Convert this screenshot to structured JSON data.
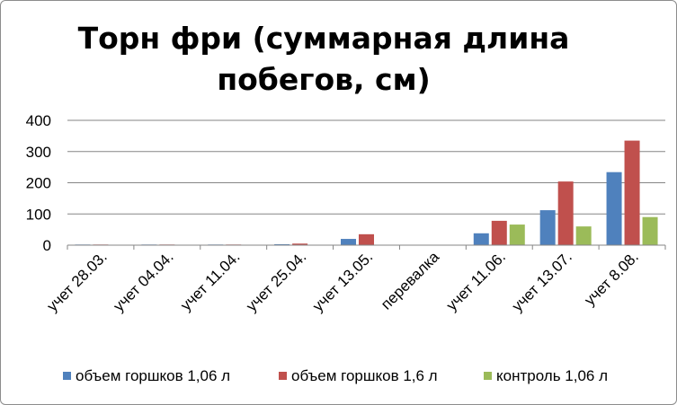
{
  "chart_data": {
    "type": "bar",
    "title": "Торн фри (суммарная длина побегов, см)",
    "title_lines": [
      "Торн фри (суммарная длина",
      "побегов, см)"
    ],
    "categories": [
      "учет 28.03.",
      "учет 04.04.",
      "учет 11.04.",
      "учет 25.04.",
      "учет 13.05.",
      "перевалка",
      "учет 11.06.",
      "учет 13.07.",
      "учет 8.08."
    ],
    "series": [
      {
        "name": "объем горшков 1,06 л",
        "color": "#4f81bd",
        "values": [
          2,
          2,
          2,
          3,
          20,
          null,
          38,
          112,
          234
        ]
      },
      {
        "name": "объем горшков 1,6 л",
        "color": "#c0504d",
        "values": [
          2,
          2,
          2,
          5,
          35,
          null,
          78,
          204,
          335
        ]
      },
      {
        "name": "контроль 1,06 л",
        "color": "#9bbb59",
        "values": [
          null,
          null,
          null,
          null,
          null,
          null,
          66,
          60,
          90
        ]
      }
    ],
    "yticks": [
      0,
      100,
      200,
      300,
      400
    ],
    "ylim": [
      0,
      400
    ],
    "xlabel": "",
    "ylabel": "",
    "grid": true,
    "legend_position": "bottom"
  }
}
